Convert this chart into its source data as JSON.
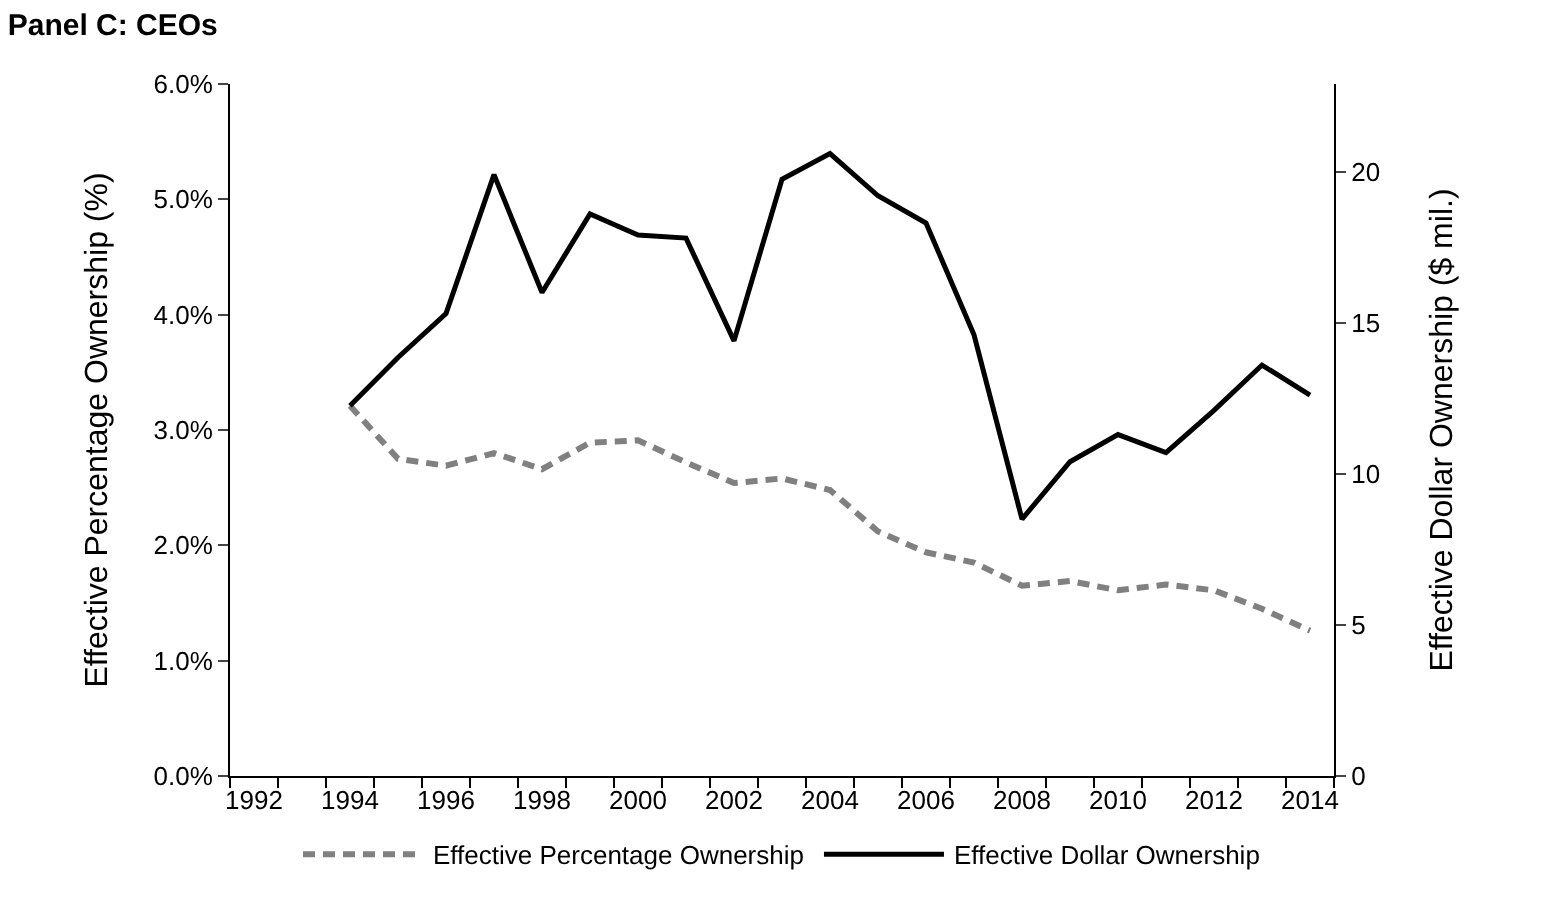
{
  "chart_data": {
    "type": "line",
    "title": "Panel C: CEOs",
    "ylabel": "Effective Percentage Ownership (%)",
    "y2label": "Effective Dollar Ownership ($ mil.)",
    "x": [
      1994,
      1995,
      1996,
      1997,
      1998,
      1999,
      2000,
      2001,
      2002,
      2003,
      2004,
      2005,
      2006,
      2007,
      2008,
      2009,
      2010,
      2011,
      2012,
      2013,
      2014
    ],
    "series": [
      {
        "name": "Effective Percentage Ownership",
        "color": "#808080",
        "line_style": "dashed",
        "values": [
          3.21,
          2.75,
          2.69,
          2.8,
          2.66,
          2.89,
          2.91,
          2.72,
          2.54,
          2.58,
          2.48,
          2.12,
          1.94,
          1.85,
          1.65,
          1.69,
          1.61,
          1.66,
          1.61,
          1.45,
          1.26
        ]
      },
      {
        "name": "Effective Dollar Ownership",
        "color": "#000000",
        "line_style": "solid",
        "axis": "y2",
        "values": [
          12.25,
          13.85,
          15.3,
          19.9,
          16.0,
          18.6,
          17.9,
          17.8,
          14.4,
          19.75,
          20.6,
          19.2,
          18.3,
          14.6,
          8.5,
          10.4,
          11.3,
          10.7,
          12.1,
          13.6,
          12.6
        ]
      }
    ],
    "xlim": [
      1991.5,
      2014.5
    ],
    "xticks": [
      1992,
      1994,
      1996,
      1998,
      2000,
      2002,
      2004,
      2006,
      2008,
      2010,
      2012,
      2014
    ],
    "ylim": [
      0,
      6
    ],
    "yticks": [
      {
        "value": 0,
        "label": "0.0%"
      },
      {
        "value": 1,
        "label": "1.0%"
      },
      {
        "value": 2,
        "label": "2.0%"
      },
      {
        "value": 3,
        "label": "3.0%"
      },
      {
        "value": 4,
        "label": "4.0%"
      },
      {
        "value": 5,
        "label": "5.0%"
      },
      {
        "value": 6,
        "label": "6.0%"
      }
    ],
    "y2lim": [
      0,
      22.9
    ],
    "y2ticks": [
      0,
      5,
      10,
      15,
      20
    ],
    "grid": false,
    "legend": "bottom",
    "marker": "none"
  }
}
